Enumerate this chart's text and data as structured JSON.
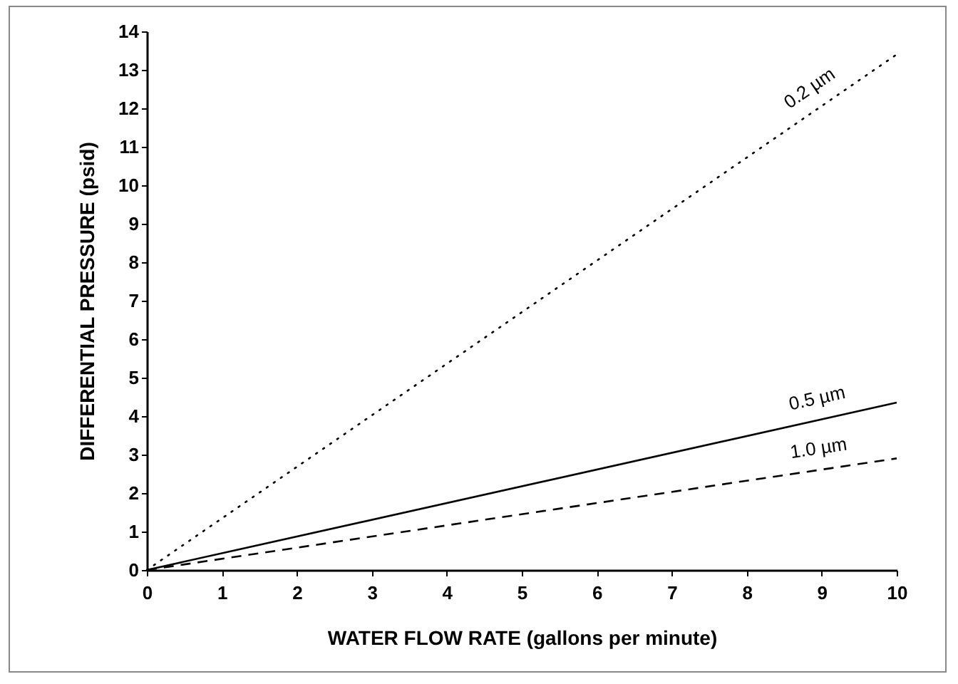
{
  "chart_data": {
    "type": "line",
    "xlabel": "WATER FLOW RATE (gallons per minute)",
    "ylabel": "DIFFERENTIAL PRESSURE (psid)",
    "x": [
      0,
      10
    ],
    "series": [
      {
        "name": "0.2 µm",
        "color": "#000000",
        "line_style": "dotted",
        "values": [
          0,
          13.4
        ]
      },
      {
        "name": "0.5 µm",
        "color": "#000000",
        "line_style": "solid",
        "values": [
          0,
          4.35
        ]
      },
      {
        "name": "1.0 µm",
        "color": "#000000",
        "line_style": "dashed",
        "values": [
          0,
          2.9
        ]
      }
    ],
    "xlim": [
      0,
      10
    ],
    "xticks": [
      0,
      1,
      2,
      3,
      4,
      5,
      6,
      7,
      8,
      9,
      10
    ],
    "ylim": [
      0,
      14
    ],
    "yticks": [
      0,
      1,
      2,
      3,
      4,
      5,
      6,
      7,
      8,
      9,
      10,
      11,
      12,
      13,
      14
    ],
    "grid": false,
    "marker": "none"
  }
}
